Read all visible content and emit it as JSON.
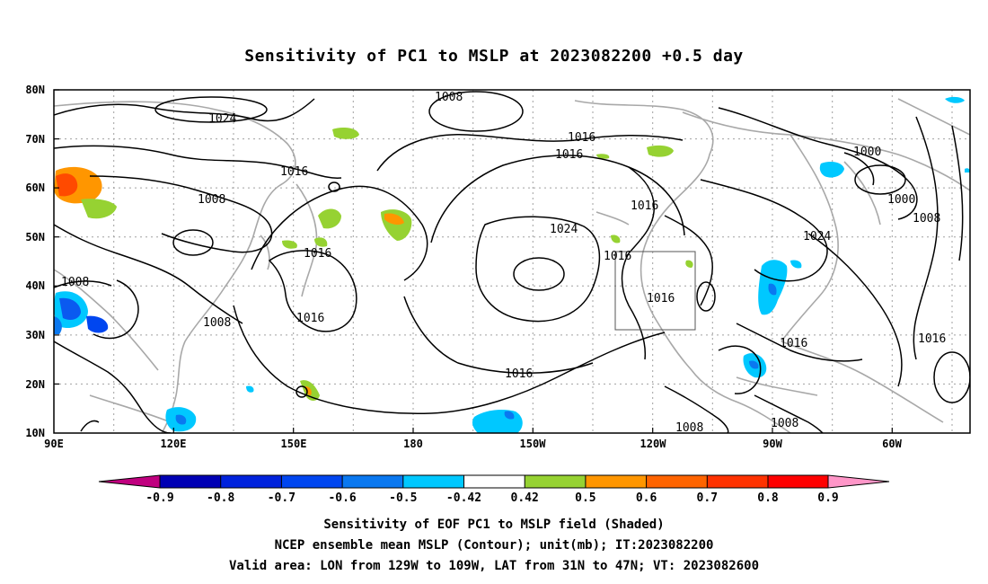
{
  "title": "Sensitivity of PC1 to MSLP at 2023082200 +0.5 day",
  "map": {
    "lat_labels": [
      "80N",
      "70N",
      "60N",
      "50N",
      "40N",
      "30N",
      "20N",
      "10N"
    ],
    "lon_labels": [
      "90E",
      "120E",
      "150E",
      "180",
      "150W",
      "120W",
      "90W",
      "60W"
    ],
    "contour_labels": [
      "1024",
      "1008",
      "1016",
      "1016",
      "1008",
      "1016",
      "1016",
      "1008",
      "1016",
      "1024",
      "1016",
      "1016",
      "1000",
      "1000",
      "1008",
      "1024",
      "1016",
      "1016",
      "1008",
      "1008",
      "1016"
    ]
  },
  "colorbar": {
    "labels": [
      "-0.9",
      "-0.8",
      "-0.7",
      "-0.6",
      "-0.5",
      "-0.42",
      "0.42",
      "0.5",
      "0.6",
      "0.7",
      "0.8",
      "0.9"
    ],
    "colors": [
      "#c0007f",
      "#0000b4",
      "#0022dc",
      "#0046f0",
      "#0a78f0",
      "#00c8ff",
      "#ffffff",
      "#96d232",
      "#ff9600",
      "#ff6400",
      "#ff3200",
      "#ff0000",
      "#ff96c8"
    ]
  },
  "captions": [
    "Sensitivity of EOF PC1 to MSLP field (Shaded)",
    "NCEP ensemble mean MSLP (Contour); unit(mb); IT:2023082200",
    "Valid area: LON from 129W to 109W, LAT from 31N to 47N; VT: 2023082600"
  ]
}
